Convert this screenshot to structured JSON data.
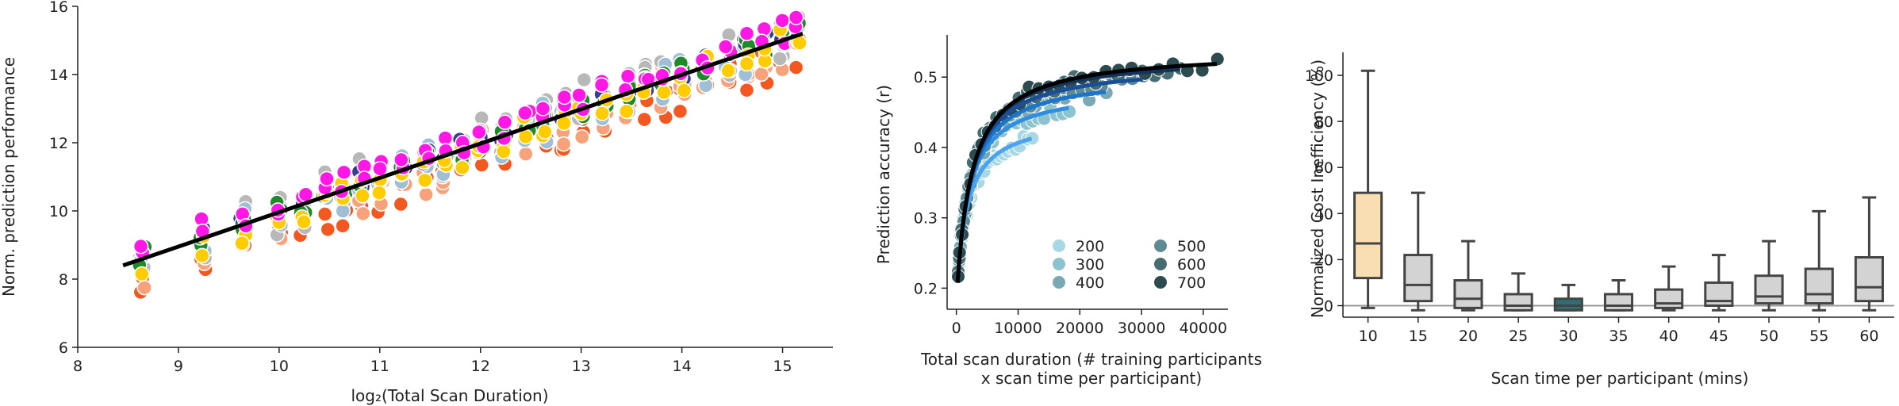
{
  "chart_data": [
    {
      "type": "scatter",
      "xlabel": "log₂(Total Scan Duration)",
      "ylabel": "Norm. prediction performance",
      "xlim": [
        8,
        15.5
      ],
      "ylim": [
        6,
        16
      ],
      "xticks": [
        "8",
        "9",
        "10",
        "11",
        "12",
        "13",
        "14",
        "15"
      ],
      "yticks": [
        "6",
        "8",
        "10",
        "12",
        "14",
        "16"
      ],
      "fit_line": {
        "x": [
          8.45,
          15.2
        ],
        "y": [
          8.4,
          15.2
        ],
        "color": "#000000"
      },
      "x_positions": [
        8.64,
        9.24,
        9.64,
        10.0,
        10.24,
        10.46,
        10.64,
        10.82,
        11.0,
        11.23,
        11.46,
        11.64,
        11.82,
        12.0,
        12.23,
        12.46,
        12.64,
        12.82,
        13.0,
        13.23,
        13.46,
        13.64,
        13.82,
        14.0,
        14.23,
        14.46,
        14.64,
        14.82,
        15.0,
        15.15
      ],
      "series": [
        {
          "color": "#f2581f",
          "offset": -0.55,
          "spread": 0.55
        },
        {
          "color": "#f7a27a",
          "offset": -0.25,
          "spread": 0.7
        },
        {
          "color": "#b8b8b8",
          "offset": 0.1,
          "spread": 0.8
        },
        {
          "color": "#9fbfd6",
          "offset": -0.05,
          "spread": 0.6
        },
        {
          "color": "#3b3e8c",
          "offset": 0.15,
          "spread": 0.3
        },
        {
          "color": "#1f8a2b",
          "offset": 0.05,
          "spread": 0.35
        },
        {
          "color": "#ffcc00",
          "offset": -0.1,
          "spread": 0.45
        },
        {
          "color": "#ff17e6",
          "offset": 0.25,
          "spread": 0.35
        }
      ]
    },
    {
      "type": "scatter",
      "xlabel": "Total scan duration (# training participants",
      "xlabel2": "x scan time per participant)",
      "ylabel": "Prediction accuracy (r)",
      "xlim": [
        -1500,
        44000
      ],
      "ylim": [
        0.17,
        0.56
      ],
      "xticks": [
        0,
        10000,
        20000,
        30000,
        40000
      ],
      "xtick_labels": [
        "0",
        "10000",
        "20000",
        "30000",
        "40000"
      ],
      "yticks": [
        0.2,
        0.3,
        0.4,
        0.5
      ],
      "ytick_labels": [
        "0.2",
        "0.3",
        "0.4",
        "0.5"
      ],
      "series": [
        {
          "name": "200",
          "color": "#a7d8e3",
          "fit_color": "#4aa3ef",
          "xmax": 12000,
          "asym": 0.445,
          "k": 1700
        },
        {
          "name": "300",
          "color": "#8bc3cf",
          "fit_color": "#2f8ee0",
          "xmax": 18000,
          "asym": 0.485,
          "k": 1900
        },
        {
          "name": "400",
          "color": "#79a9b4",
          "fit_color": "#1d74c9",
          "xmax": 24000,
          "asym": 0.505,
          "k": 2100
        },
        {
          "name": "500",
          "color": "#5f8c93",
          "fit_color": "#1a4f95",
          "xmax": 30000,
          "asym": 0.52,
          "k": 2200
        },
        {
          "name": "600",
          "color": "#456d72",
          "fit_color": "#14335a",
          "xmax": 36000,
          "asym": 0.532,
          "k": 2300
        },
        {
          "name": "700",
          "color": "#2c4c50",
          "fit_color": "#000000",
          "xmax": 42000,
          "asym": 0.538,
          "k": 2400
        }
      ],
      "legend": "lower-right"
    },
    {
      "type": "box",
      "xlabel": "Scan time per participant (mins)",
      "ylabel": "Normalized Cost Inefficiency (%)",
      "ylim": [
        -5,
        110
      ],
      "yticks": [
        0,
        20,
        40,
        60,
        80,
        100
      ],
      "ytick_labels": [
        "0",
        "20",
        "40",
        "60",
        "80",
        "100"
      ],
      "categories": [
        "10",
        "15",
        "20",
        "25",
        "30",
        "35",
        "40",
        "45",
        "50",
        "55",
        "60"
      ],
      "boxes": [
        {
          "min": -1,
          "q1": 12,
          "median": 27,
          "q3": 49,
          "max": 102,
          "color": "#f9deb3"
        },
        {
          "min": -2,
          "q1": 2,
          "median": 9,
          "q3": 22,
          "max": 49,
          "color": "#d3d3d3"
        },
        {
          "min": -2,
          "q1": -1,
          "median": 3,
          "q3": 11,
          "max": 28,
          "color": "#d3d3d3"
        },
        {
          "min": -2,
          "q1": -2,
          "median": 0,
          "q3": 5,
          "max": 14,
          "color": "#d3d3d3"
        },
        {
          "min": -2,
          "q1": -2,
          "median": 0,
          "q3": 3,
          "max": 9,
          "color": "#2f6f73"
        },
        {
          "min": -2,
          "q1": -2,
          "median": 0,
          "q3": 5,
          "max": 11,
          "color": "#d3d3d3"
        },
        {
          "min": -2,
          "q1": -1,
          "median": 1,
          "q3": 7,
          "max": 17,
          "color": "#d3d3d3"
        },
        {
          "min": -2,
          "q1": 0,
          "median": 2,
          "q3": 10,
          "max": 22,
          "color": "#d3d3d3"
        },
        {
          "min": -2,
          "q1": 1,
          "median": 4,
          "q3": 13,
          "max": 28,
          "color": "#d3d3d3"
        },
        {
          "min": -2,
          "q1": 1,
          "median": 5,
          "q3": 16,
          "max": 41,
          "color": "#d3d3d3"
        },
        {
          "min": -2,
          "q1": 2,
          "median": 8,
          "q3": 21,
          "max": 47,
          "color": "#d3d3d3"
        }
      ],
      "reference_line": {
        "y": 0,
        "color": "#999999"
      }
    }
  ]
}
